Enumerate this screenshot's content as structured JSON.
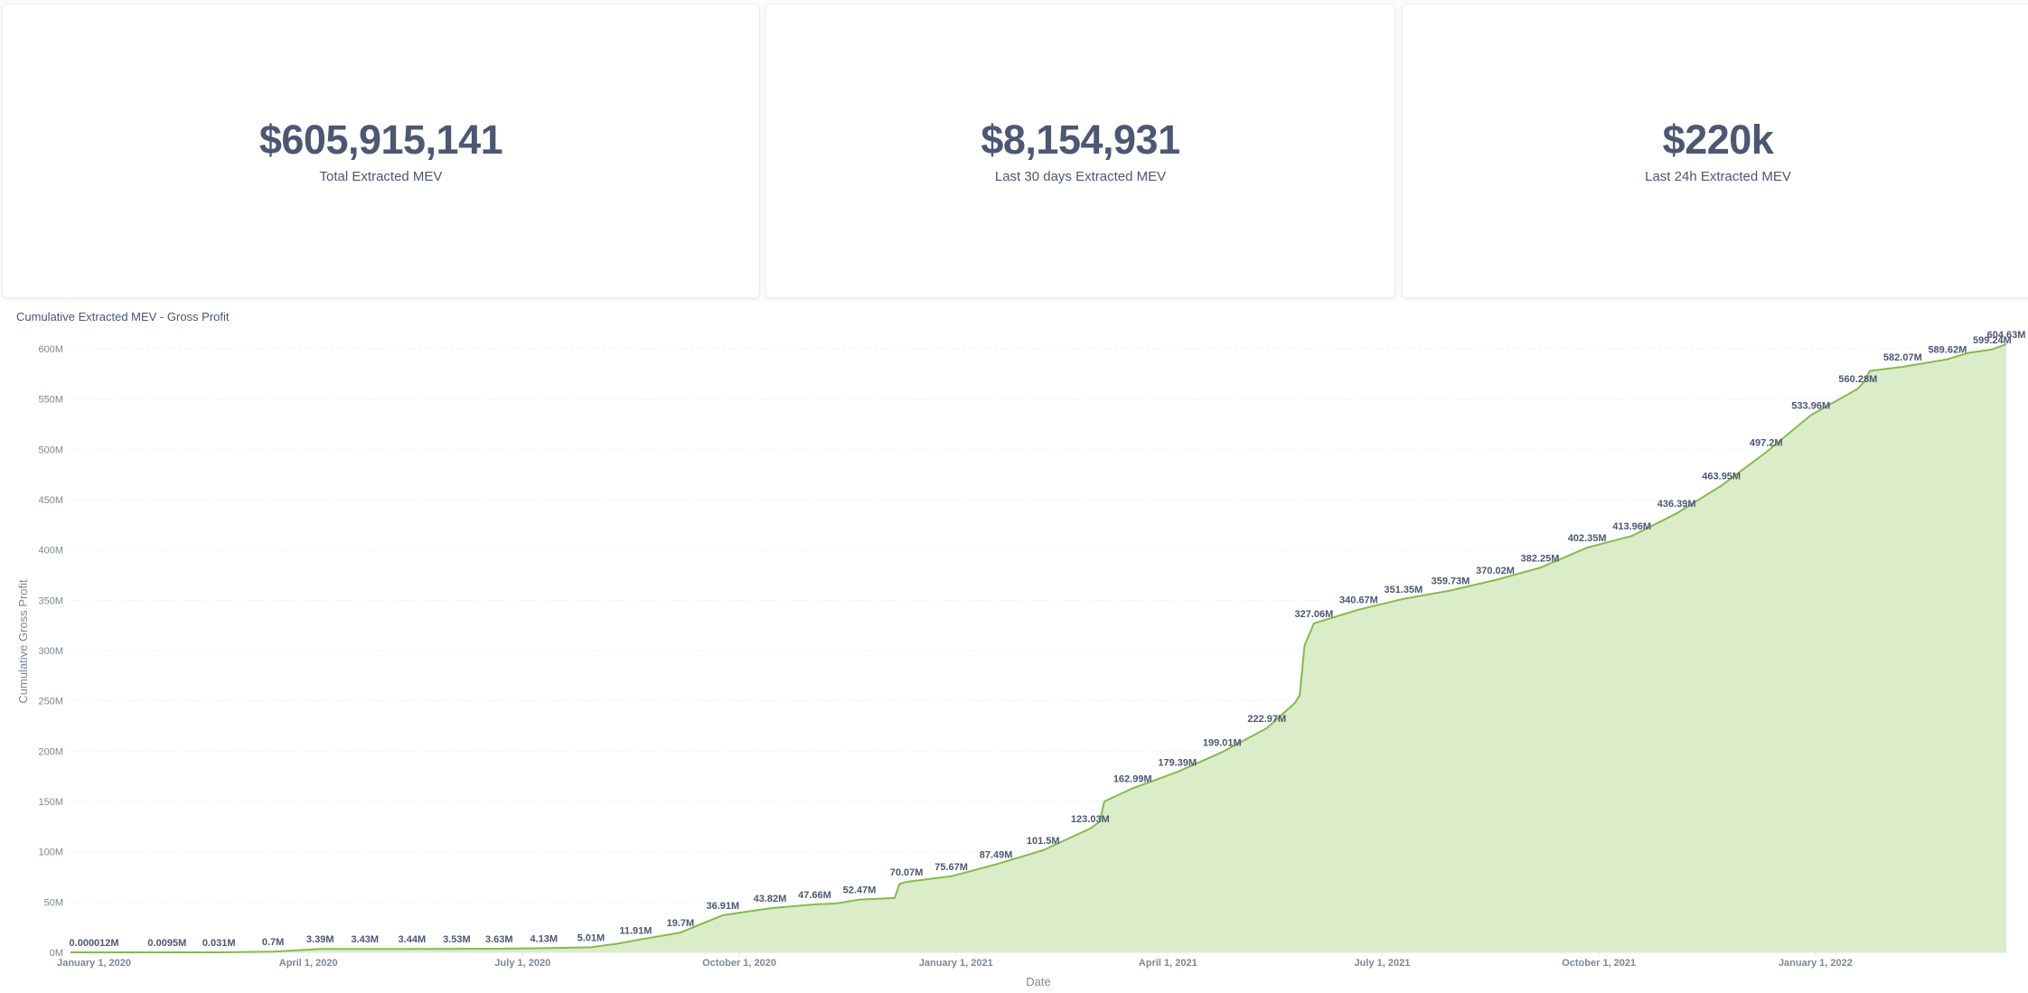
{
  "kpis": [
    {
      "value": "$605,915,141",
      "label": "Total Extracted MEV"
    },
    {
      "value": "$8,154,931",
      "label": "Last 30 days Extracted MEV"
    },
    {
      "value": "$220k",
      "label": "Last 24h Extracted MEV"
    }
  ],
  "colors": {
    "line": "#84bb4c",
    "fill": "#dbecc9",
    "text": "#4c5773",
    "muted": "#7c8896"
  },
  "chart_data": {
    "type": "area",
    "title": "Cumulative Extracted MEV - Gross Profit",
    "xlabel": "Date",
    "ylabel": "Cumulative Gross Profit",
    "ylim": [
      0,
      600
    ],
    "y_unit": "M",
    "y_ticks": [
      "0M",
      "50M",
      "100M",
      "150M",
      "200M",
      "250M",
      "300M",
      "350M",
      "400M",
      "450M",
      "500M",
      "550M",
      "600M"
    ],
    "x_range": [
      "2019-12-22",
      "2022-03-23"
    ],
    "x_ticks": [
      {
        "date": "2020-01-01",
        "label": "January 1, 2020"
      },
      {
        "date": "2020-04-01",
        "label": "April 1, 2020"
      },
      {
        "date": "2020-07-01",
        "label": "July 1, 2020"
      },
      {
        "date": "2020-10-01",
        "label": "October 1, 2020"
      },
      {
        "date": "2021-01-01",
        "label": "January 1, 2021"
      },
      {
        "date": "2021-04-01",
        "label": "April 1, 2021"
      },
      {
        "date": "2021-07-01",
        "label": "July 1, 2021"
      },
      {
        "date": "2021-10-01",
        "label": "October 1, 2021"
      },
      {
        "date": "2022-01-01",
        "label": "January 1, 2022"
      }
    ],
    "grid": true,
    "legend": "none",
    "points": [
      {
        "x": "2019-12-22",
        "y": 1.2e-05
      },
      {
        "x": "2020-01-01",
        "y": 1.2e-05,
        "label": "0.000012M"
      },
      {
        "x": "2020-02-01",
        "y": 0.0095,
        "label": "0.0095M"
      },
      {
        "x": "2020-02-23",
        "y": 0.031,
        "label": "0.031M"
      },
      {
        "x": "2020-03-17",
        "y": 0.7,
        "label": "0.7M"
      },
      {
        "x": "2020-04-06",
        "y": 3.39,
        "label": "3.39M"
      },
      {
        "x": "2020-04-25",
        "y": 3.43,
        "label": "3.43M"
      },
      {
        "x": "2020-05-15",
        "y": 3.44,
        "label": "3.44M"
      },
      {
        "x": "2020-06-03",
        "y": 3.53,
        "label": "3.53M"
      },
      {
        "x": "2020-06-21",
        "y": 3.63,
        "label": "3.63M"
      },
      {
        "x": "2020-07-10",
        "y": 4.13,
        "label": "4.13M"
      },
      {
        "x": "2020-07-30",
        "y": 5.01,
        "label": "5.01M"
      },
      {
        "x": "2020-08-10",
        "y": 8.5
      },
      {
        "x": "2020-08-18",
        "y": 11.91,
        "label": "11.91M"
      },
      {
        "x": "2020-09-06",
        "y": 19.7,
        "label": "19.7M"
      },
      {
        "x": "2020-09-24",
        "y": 36.91,
        "label": "36.91M"
      },
      {
        "x": "2020-10-14",
        "y": 43.82,
        "label": "43.82M"
      },
      {
        "x": "2020-11-02",
        "y": 47.66,
        "label": "47.66M"
      },
      {
        "x": "2020-11-11",
        "y": 48.5
      },
      {
        "x": "2020-11-21",
        "y": 52.47,
        "label": "52.47M"
      },
      {
        "x": "2020-12-06",
        "y": 54.0
      },
      {
        "x": "2020-12-08",
        "y": 68.0
      },
      {
        "x": "2020-12-11",
        "y": 70.07,
        "label": "70.07M"
      },
      {
        "x": "2020-12-30",
        "y": 75.67,
        "label": "75.67M"
      },
      {
        "x": "2021-01-18",
        "y": 87.49,
        "label": "87.49M"
      },
      {
        "x": "2021-02-07",
        "y": 101.5,
        "label": "101.5M"
      },
      {
        "x": "2021-02-27",
        "y": 123.03,
        "label": "123.03M"
      },
      {
        "x": "2021-03-03",
        "y": 130.0
      },
      {
        "x": "2021-03-05",
        "y": 150.0
      },
      {
        "x": "2021-03-17",
        "y": 162.99,
        "label": "162.99M"
      },
      {
        "x": "2021-04-05",
        "y": 179.39,
        "label": "179.39M"
      },
      {
        "x": "2021-04-24",
        "y": 199.01,
        "label": "199.01M"
      },
      {
        "x": "2021-05-13",
        "y": 222.97,
        "label": "222.97M"
      },
      {
        "x": "2021-05-25",
        "y": 248.0
      },
      {
        "x": "2021-05-27",
        "y": 256.0
      },
      {
        "x": "2021-05-29",
        "y": 305.0
      },
      {
        "x": "2021-06-02",
        "y": 327.06,
        "label": "327.06M"
      },
      {
        "x": "2021-06-21",
        "y": 340.67,
        "label": "340.67M"
      },
      {
        "x": "2021-07-10",
        "y": 351.35,
        "label": "351.35M"
      },
      {
        "x": "2021-07-30",
        "y": 359.73,
        "label": "359.73M"
      },
      {
        "x": "2021-08-18",
        "y": 370.02,
        "label": "370.02M"
      },
      {
        "x": "2021-09-06",
        "y": 382.25,
        "label": "382.25M"
      },
      {
        "x": "2021-09-26",
        "y": 402.35,
        "label": "402.35M"
      },
      {
        "x": "2021-10-15",
        "y": 413.96,
        "label": "413.96M"
      },
      {
        "x": "2021-11-03",
        "y": 436.39,
        "label": "436.39M"
      },
      {
        "x": "2021-11-22",
        "y": 463.95,
        "label": "463.95M"
      },
      {
        "x": "2021-12-11",
        "y": 497.2,
        "label": "497.2M"
      },
      {
        "x": "2021-12-30",
        "y": 533.96,
        "label": "533.96M"
      },
      {
        "x": "2022-01-19",
        "y": 560.28,
        "label": "560.28M"
      },
      {
        "x": "2022-01-22",
        "y": 568.0
      },
      {
        "x": "2022-01-24",
        "y": 578.0
      },
      {
        "x": "2022-02-07",
        "y": 582.07,
        "label": "582.07M"
      },
      {
        "x": "2022-02-26",
        "y": 589.62,
        "label": "589.62M"
      },
      {
        "x": "2022-03-07",
        "y": 596.0
      },
      {
        "x": "2022-03-17",
        "y": 599.24,
        "label": "599.24M"
      },
      {
        "x": "2022-03-23",
        "y": 604.63,
        "label": "604.63M"
      }
    ]
  }
}
